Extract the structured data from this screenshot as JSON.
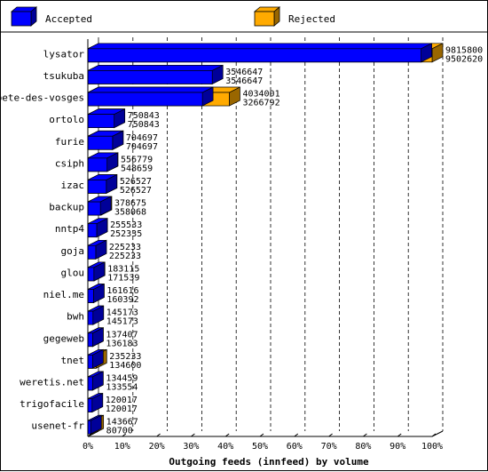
{
  "chart_data": {
    "type": "bar",
    "orientation": "horizontal",
    "stacked_overlay": true,
    "xlabel": "Outgoing feeds (innfeed) by volume",
    "xlim": [
      0,
      100
    ],
    "x_ticks": [
      "0%",
      "10%",
      "20%",
      "30%",
      "40%",
      "50%",
      "60%",
      "70%",
      "80%",
      "90%",
      "100%"
    ],
    "grid": "vertical-dashed",
    "legend_position": "top",
    "categories": [
      "lysator",
      "tsukuba",
      "bete-des-vosges",
      "ortolo",
      "furie",
      "csiph",
      "izac",
      "backup",
      "nntp4",
      "goja",
      "glou",
      "niel.me",
      "bwh",
      "gegeweb",
      "tnet",
      "weretis.net",
      "trigofacile",
      "usenet-fr"
    ],
    "series": [
      {
        "name": "Accepted",
        "color": "#0000ff",
        "values": [
          9502620,
          3546647,
          3266792,
          750843,
          704697,
          548659,
          526527,
          358068,
          252335,
          225233,
          171539,
          160392,
          145173,
          136183,
          134600,
          133554,
          120017,
          80700
        ]
      },
      {
        "name": "Rejected",
        "color": "#ffaa00",
        "values": [
          9815800,
          3546647,
          4034001,
          750843,
          704697,
          556779,
          526527,
          378675,
          255533,
          225233,
          183115,
          161616,
          145173,
          137407,
          235233,
          134459,
          120017,
          143667
        ]
      }
    ],
    "value_labels_upper": [
      "9815800",
      "3546647",
      "4034001",
      "750843",
      "704697",
      "556779",
      "526527",
      "378675",
      "255533",
      "225233",
      "183115",
      "161616",
      "145173",
      "137407",
      "235233",
      "134459",
      "120017",
      "143667"
    ],
    "value_labels_lower": [
      "9502620",
      "3546647",
      "3266792",
      "750843",
      "704697",
      "548659",
      "526527",
      "358068",
      "252335",
      "225233",
      "171539",
      "160392",
      "145173",
      "136183",
      "134600",
      "133554",
      "120017",
      "80700"
    ]
  },
  "colors": {
    "accepted": "#0000ff",
    "rejected": "#ffaa00"
  }
}
